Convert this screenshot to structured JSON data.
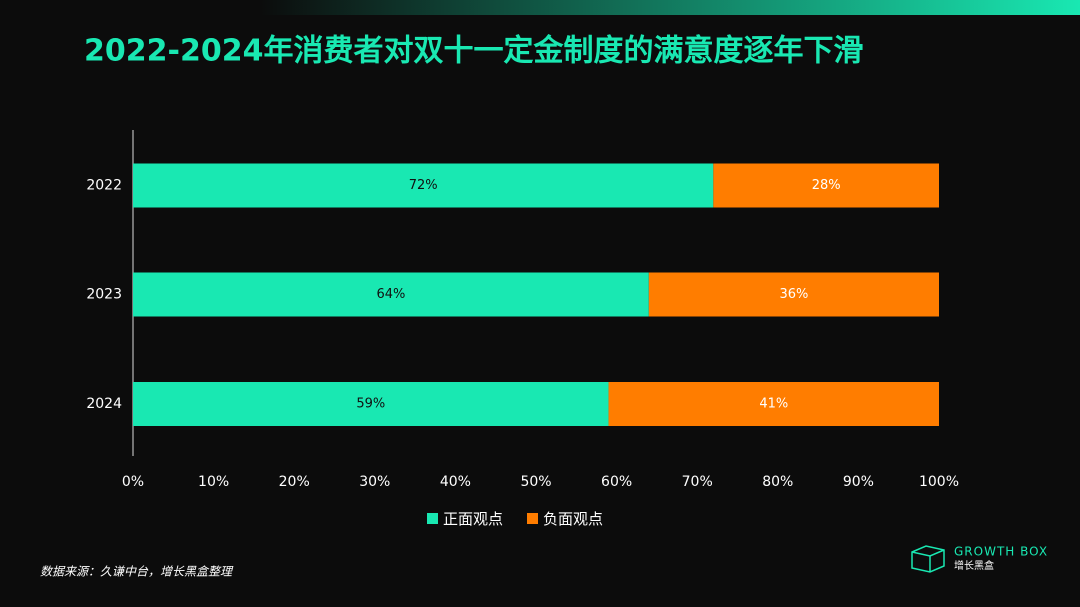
{
  "chart_data": {
    "type": "bar",
    "orientation": "horizontal",
    "stacked": true,
    "title": "2022-2024年消费者对双十一定金制度的满意度逐年下滑",
    "categories": [
      "2022",
      "2023",
      "2024"
    ],
    "series": [
      {
        "name": "正面观点",
        "color": "#19e8b2",
        "values": [
          72,
          64,
          59
        ],
        "value_labels": [
          "72%",
          "64%",
          "59%"
        ]
      },
      {
        "name": "负面观点",
        "color": "#ff7d00",
        "values": [
          28,
          36,
          41
        ],
        "value_labels": [
          "28%",
          "36%",
          "41%"
        ]
      }
    ],
    "xlim": [
      0,
      100
    ],
    "xticks": [
      {
        "value": 0,
        "label": "0%"
      },
      {
        "value": 10,
        "label": "10%"
      },
      {
        "value": 20,
        "label": "20%"
      },
      {
        "value": 30,
        "label": "30%"
      },
      {
        "value": 40,
        "label": "40%"
      },
      {
        "value": 50,
        "label": "50%"
      },
      {
        "value": 60,
        "label": "60%"
      },
      {
        "value": 70,
        "label": "70%"
      },
      {
        "value": 80,
        "label": "80%"
      },
      {
        "value": 90,
        "label": "90%"
      },
      {
        "value": 100,
        "label": "100%"
      }
    ],
    "grid": false
  },
  "footer": {
    "source": "数据来源：久谦中台，增长黑盒整理",
    "logo_text": "GROWTH BOX",
    "logo_subtext": "增长黑盒"
  }
}
